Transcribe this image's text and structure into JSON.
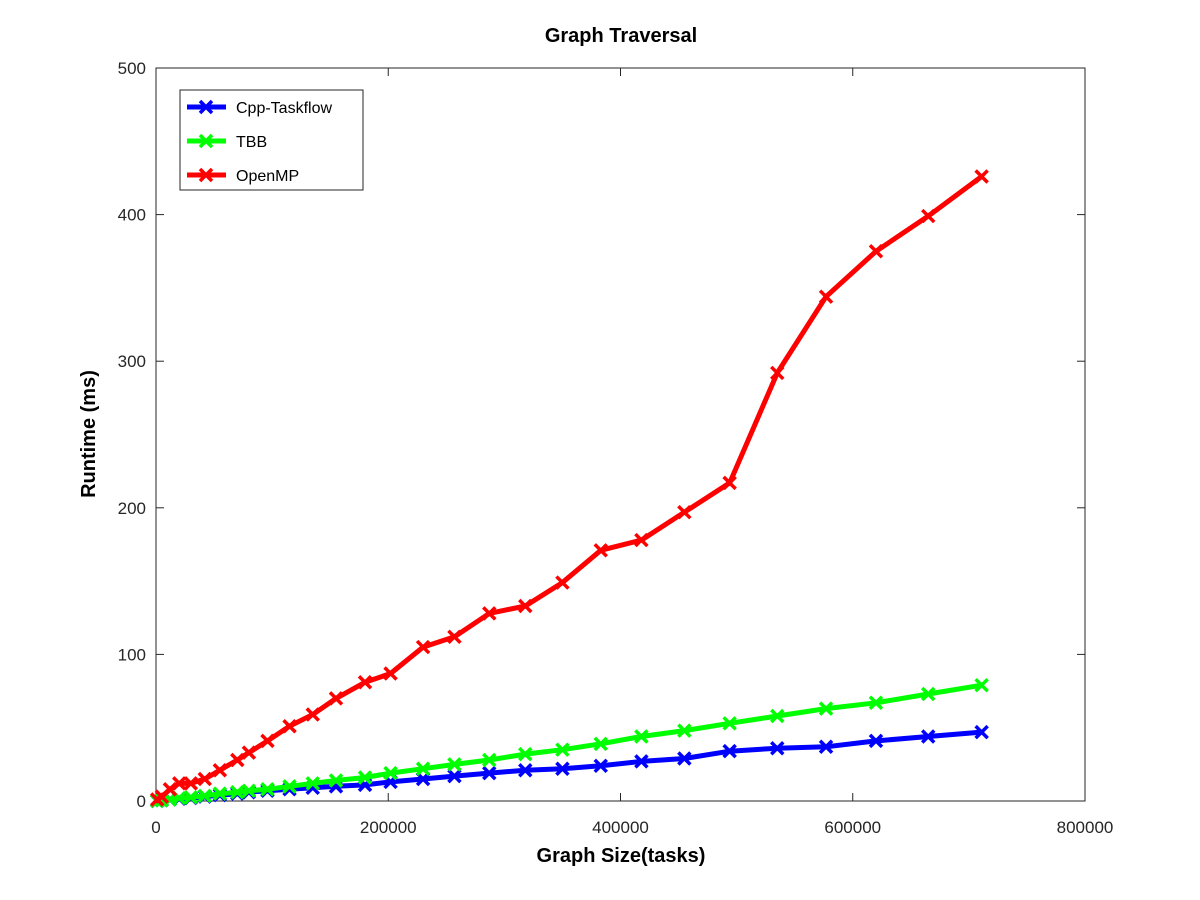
{
  "chart_data": {
    "type": "line",
    "title": "Graph Traversal",
    "xlabel": "Graph Size(tasks)",
    "ylabel": "Runtime (ms)",
    "xlim": [
      0,
      800000
    ],
    "ylim": [
      0,
      500
    ],
    "xticks": [
      0,
      200000,
      400000,
      600000,
      800000
    ],
    "xtick_labels": [
      "0",
      "200000",
      "400000",
      "600000",
      "800000"
    ],
    "yticks": [
      0,
      100,
      200,
      300,
      400,
      500
    ],
    "ytick_labels": [
      "0",
      "100",
      "200",
      "300",
      "400",
      "500"
    ],
    "grid": false,
    "legend_position": "top-left",
    "x": [
      1000,
      5000,
      12000,
      20000,
      30000,
      42000,
      55000,
      70000,
      80000,
      96000,
      115000,
      135000,
      155000,
      180000,
      202000,
      230000,
      257000,
      287000,
      318000,
      350000,
      383000,
      418000,
      455000,
      494000,
      535000,
      577000,
      620000,
      665000,
      711000
    ],
    "series": [
      {
        "name": "Cpp-Taskflow",
        "color": "#0000ff",
        "values": [
          0,
          0.5,
          1,
          1.5,
          2,
          3,
          4,
          5,
          6,
          7,
          8,
          9,
          10,
          11,
          13,
          15,
          17,
          19,
          21,
          22,
          24,
          27,
          29,
          34,
          36,
          37,
          41,
          44,
          47
        ]
      },
      {
        "name": "TBB",
        "color": "#00ff00",
        "values": [
          0,
          0.5,
          1,
          2,
          2.5,
          3.5,
          5,
          6,
          7,
          8,
          10,
          12,
          14,
          16,
          19,
          22,
          25,
          28,
          32,
          35,
          39,
          44,
          48,
          53,
          58,
          63,
          67,
          73,
          79
        ]
      },
      {
        "name": "OpenMP",
        "color": "#ff0000",
        "values": [
          1,
          3,
          8,
          12,
          12,
          15,
          21,
          28,
          33,
          41,
          51,
          59,
          70,
          81,
          87,
          105,
          112,
          128,
          133,
          149,
          171,
          178,
          197,
          217,
          292,
          344,
          375,
          399,
          426
        ]
      }
    ]
  }
}
